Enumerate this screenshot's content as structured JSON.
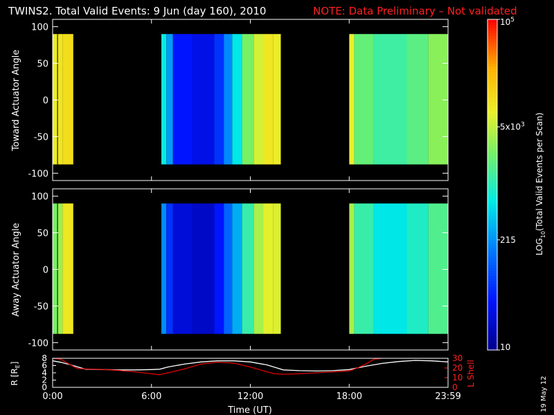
{
  "header": {
    "title": "TWINS2. Total Valid Events:  9 Jun (day 160), 2010",
    "note": "NOTE: Data Preliminary – Not validated",
    "note_color": "#ff2020"
  },
  "chart_data": [
    {
      "type": "heatmap",
      "panel": "top",
      "ylabel": "Toward Actuator Angle",
      "ylim": [
        -110,
        110
      ],
      "yticks": [
        "100",
        "50",
        "0",
        "-50",
        "-100"
      ],
      "xlim_hours": [
        0,
        24
      ],
      "angle_range": [
        -88,
        90
      ],
      "coverage_hours": [
        [
          0.0,
          1.25
        ],
        [
          6.6,
          13.85
        ],
        [
          18.0,
          24.0
        ]
      ],
      "colorscale": "log10 events per scan, 10 → 1e5",
      "columns": [
        {
          "start": 0.0,
          "end": 0.28,
          "value": 8000
        },
        {
          "start": 0.28,
          "end": 0.32,
          "value": 0
        },
        {
          "start": 0.32,
          "end": 0.6,
          "value": 9500
        },
        {
          "start": 0.6,
          "end": 1.25,
          "value": 11000
        },
        {
          "start": 6.6,
          "end": 6.9,
          "value": 700
        },
        {
          "start": 6.9,
          "end": 7.3,
          "value": 250
        },
        {
          "start": 7.3,
          "end": 8.5,
          "value": 40
        },
        {
          "start": 8.5,
          "end": 9.8,
          "value": 30
        },
        {
          "start": 9.8,
          "end": 10.4,
          "value": 60
        },
        {
          "start": 10.4,
          "end": 10.9,
          "value": 200
        },
        {
          "start": 10.9,
          "end": 11.5,
          "value": 600
        },
        {
          "start": 11.5,
          "end": 12.2,
          "value": 2500
        },
        {
          "start": 12.2,
          "end": 12.8,
          "value": 6000
        },
        {
          "start": 12.8,
          "end": 13.4,
          "value": 9000
        },
        {
          "start": 13.4,
          "end": 13.85,
          "value": 8000
        },
        {
          "start": 18.0,
          "end": 18.3,
          "value": 7500
        },
        {
          "start": 18.3,
          "end": 19.5,
          "value": 2000
        },
        {
          "start": 19.5,
          "end": 21.5,
          "value": 1300
        },
        {
          "start": 21.5,
          "end": 22.8,
          "value": 1800
        },
        {
          "start": 22.8,
          "end": 24.0,
          "value": 3000
        }
      ]
    },
    {
      "type": "heatmap",
      "panel": "middle",
      "ylabel": "Away Actuator Angle",
      "ylim": [
        -110,
        110
      ],
      "yticks": [
        "100",
        "50",
        "0",
        "-50",
        "-100"
      ],
      "xlim_hours": [
        0,
        24
      ],
      "angle_range": [
        -88,
        90
      ],
      "coverage_hours": [
        [
          0.0,
          1.25
        ],
        [
          6.6,
          13.85
        ],
        [
          18.0,
          24.0
        ]
      ],
      "columns": [
        {
          "start": 0.0,
          "end": 0.28,
          "value": 2500
        },
        {
          "start": 0.28,
          "end": 0.32,
          "value": 0
        },
        {
          "start": 0.32,
          "end": 0.6,
          "value": 3500
        },
        {
          "start": 0.6,
          "end": 1.25,
          "value": 9000
        },
        {
          "start": 6.6,
          "end": 6.9,
          "value": 200
        },
        {
          "start": 6.9,
          "end": 7.3,
          "value": 60
        },
        {
          "start": 7.3,
          "end": 8.5,
          "value": 25
        },
        {
          "start": 8.5,
          "end": 9.8,
          "value": 20
        },
        {
          "start": 9.8,
          "end": 10.4,
          "value": 40
        },
        {
          "start": 10.4,
          "end": 10.9,
          "value": 120
        },
        {
          "start": 10.9,
          "end": 11.5,
          "value": 300
        },
        {
          "start": 11.5,
          "end": 12.2,
          "value": 1200
        },
        {
          "start": 12.2,
          "end": 12.8,
          "value": 4000
        },
        {
          "start": 12.8,
          "end": 13.4,
          "value": 7000
        },
        {
          "start": 13.4,
          "end": 13.85,
          "value": 6500
        },
        {
          "start": 18.0,
          "end": 18.3,
          "value": 4000
        },
        {
          "start": 18.3,
          "end": 19.5,
          "value": 1200
        },
        {
          "start": 19.5,
          "end": 21.5,
          "value": 600
        },
        {
          "start": 21.5,
          "end": 22.8,
          "value": 900
        },
        {
          "start": 22.8,
          "end": 24.0,
          "value": 1600
        }
      ]
    },
    {
      "type": "line",
      "panel": "orbit",
      "ylabel": "R [R",
      "ylabel_sub": "E",
      "ylabel_close": "]",
      "ylim": [
        0,
        8
      ],
      "yticks": [
        "8",
        "6",
        "4",
        "2",
        "0"
      ],
      "y2label": "L Shell",
      "y2lim": [
        0,
        30
      ],
      "y2ticks": [
        "30",
        "20",
        "10",
        "0"
      ],
      "xlabel": "Time (UT)",
      "xticks": [
        "0:00",
        "6:00",
        "12:00",
        "18:00",
        "23:59"
      ],
      "xlim_hours": [
        0,
        24
      ],
      "series": [
        {
          "color": "#ffffff",
          "x": [
            0,
            0.5,
            1,
            2,
            3,
            4,
            5,
            6,
            6.5,
            7,
            8,
            9,
            10,
            11,
            12,
            13,
            13.5,
            14,
            15,
            16,
            17,
            18,
            19,
            20,
            21,
            22,
            23,
            24
          ],
          "y": [
            7.3,
            6.9,
            6.3,
            5.0,
            4.9,
            4.8,
            4.8,
            4.9,
            5.0,
            5.6,
            6.4,
            7.0,
            7.3,
            7.3,
            7.0,
            6.2,
            5.5,
            4.8,
            4.6,
            4.5,
            4.6,
            4.9,
            5.8,
            6.6,
            7.1,
            7.4,
            7.3,
            7.0
          ]
        },
        {
          "color": "#e00000",
          "axis": "right",
          "x": [
            0,
            0.5,
            1,
            1.5,
            2,
            3,
            4,
            5,
            6,
            6.5,
            7,
            8,
            9,
            10,
            11,
            12,
            13,
            13.5,
            14,
            15,
            16,
            17,
            18,
            18.5,
            19,
            19.5,
            20
          ],
          "y": [
            32,
            29,
            24,
            19.5,
            19,
            18.5,
            17.5,
            16,
            14,
            13,
            15,
            19,
            24,
            26,
            25,
            21,
            16,
            14,
            13.5,
            14,
            15,
            16,
            17,
            20,
            24,
            29,
            34
          ]
        }
      ]
    }
  ],
  "colorbar": {
    "label_prefix": "LOG",
    "label_sub": "10",
    "label_suffix": "(Total Valid Events per Scan)",
    "ticks": [
      {
        "base": "10",
        "exp": "5",
        "value": 100000
      },
      {
        "base": "5x10",
        "exp": "3",
        "value": 5000
      },
      {
        "base": "215",
        "exp": "",
        "value": 215
      },
      {
        "base": "10",
        "exp": "",
        "value": 10
      }
    ],
    "range": [
      10,
      100000
    ]
  },
  "footer": {
    "date_stamp": "19 May 12"
  }
}
